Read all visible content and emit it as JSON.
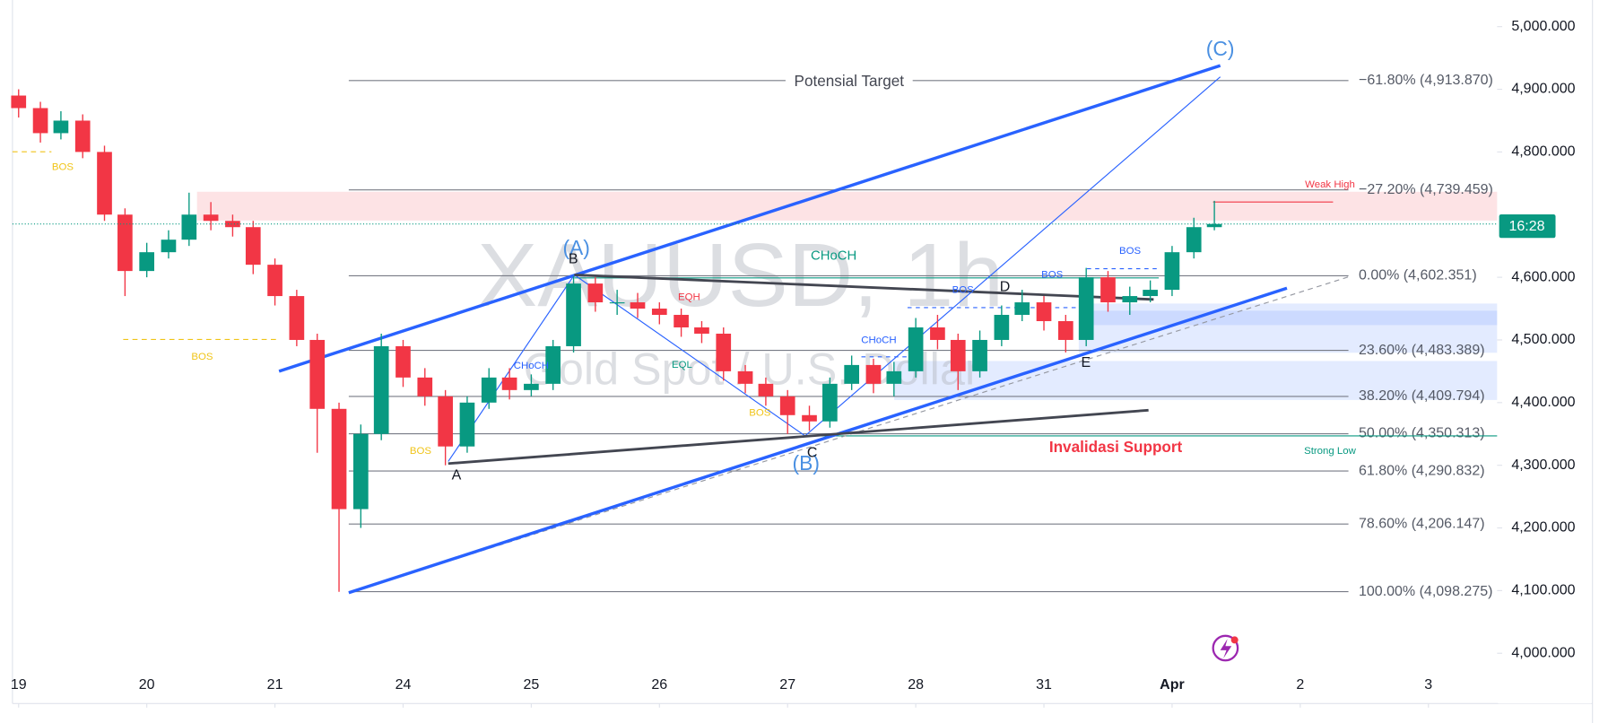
{
  "chart_data": {
    "type": "candlestick",
    "title": "XAUUSD, 1h",
    "subtitle": "Gold Spot / U.S. Dollar",
    "countdown": "16:28",
    "up_color": "#089981",
    "down_color": "#f23645",
    "x": [
      0,
      0.17,
      0.33,
      0.5,
      0.67,
      0.83,
      1,
      1.17,
      1.33,
      1.5,
      1.67,
      1.83,
      2,
      2.17,
      2.33,
      2.5,
      2.67,
      2.83,
      3,
      3.17,
      3.33,
      3.5,
      3.67,
      3.83,
      4,
      4.17,
      4.33,
      4.5,
      4.67,
      4.83,
      5,
      5.17,
      5.33,
      5.5,
      5.67,
      5.83,
      6,
      6.17,
      6.33,
      6.5,
      6.67,
      6.83,
      7,
      7.17,
      7.33,
      7.5,
      7.67,
      7.83,
      8,
      8.17,
      8.33,
      8.5,
      8.67,
      8.83,
      9,
      9.17,
      9.33
    ],
    "open": [
      4890,
      4870,
      4830,
      4850,
      4800,
      4700,
      4610,
      4640,
      4660,
      4700,
      4690,
      4680,
      4620,
      4570,
      4500,
      4390,
      4230,
      4350,
      4490,
      4440,
      4410,
      4330,
      4400,
      4440,
      4420,
      4430,
      4490,
      4590,
      4560,
      4560,
      4550,
      4540,
      4520,
      4510,
      4450,
      4430,
      4410,
      4380,
      4370,
      4430,
      4460,
      4430,
      4450,
      4520,
      4500,
      4450,
      4500,
      4540,
      4560,
      4530,
      4500,
      4600,
      4560,
      4570,
      4580,
      4640,
      4680
    ],
    "high": [
      4900,
      4880,
      4865,
      4860,
      4810,
      4710,
      4655,
      4675,
      4735,
      4720,
      4700,
      4690,
      4630,
      4580,
      4510,
      4400,
      4365,
      4510,
      4500,
      4455,
      4420,
      4410,
      4455,
      4455,
      4445,
      4500,
      4602,
      4600,
      4580,
      4575,
      4560,
      4550,
      4530,
      4520,
      4460,
      4440,
      4420,
      4395,
      4440,
      4475,
      4470,
      4465,
      4535,
      4540,
      4510,
      4515,
      4555,
      4580,
      4570,
      4540,
      4615,
      4610,
      4585,
      4595,
      4650,
      4695,
      4722
    ],
    "low": [
      4855,
      4815,
      4820,
      4790,
      4690,
      4570,
      4600,
      4630,
      4650,
      4675,
      4665,
      4605,
      4555,
      4490,
      4320,
      4098,
      4200,
      4340,
      4425,
      4395,
      4300,
      4320,
      4390,
      4405,
      4410,
      4420,
      4480,
      4545,
      4540,
      4535,
      4525,
      4505,
      4495,
      4435,
      4415,
      4395,
      4350,
      4355,
      4360,
      4420,
      4415,
      4410,
      4440,
      4485,
      4420,
      4440,
      4490,
      4530,
      4515,
      4480,
      4490,
      4545,
      4540,
      4560,
      4570,
      4630,
      4675
    ],
    "close": [
      4870,
      4830,
      4850,
      4800,
      4700,
      4610,
      4640,
      4660,
      4700,
      4690,
      4680,
      4620,
      4570,
      4500,
      4390,
      4230,
      4350,
      4490,
      4440,
      4410,
      4330,
      4400,
      4440,
      4420,
      4430,
      4490,
      4590,
      4560,
      4560,
      4550,
      4540,
      4520,
      4510,
      4450,
      4430,
      4410,
      4380,
      4370,
      4430,
      4460,
      4430,
      4450,
      4520,
      4500,
      4450,
      4500,
      4540,
      4560,
      4530,
      4500,
      4600,
      4560,
      4570,
      4580,
      4640,
      4680,
      4685
    ],
    "xlim": [
      -0.048,
      11.536
    ],
    "xticks": [
      {
        "value": 0,
        "label": "19"
      },
      {
        "value": 1,
        "label": "20"
      },
      {
        "value": 2,
        "label": "21"
      },
      {
        "value": 3,
        "label": "24"
      },
      {
        "value": 4,
        "label": "25"
      },
      {
        "value": 5,
        "label": "26"
      },
      {
        "value": 6,
        "label": "27"
      },
      {
        "value": 7,
        "label": "28"
      },
      {
        "value": 8,
        "label": "31"
      },
      {
        "value": 9,
        "label": "Apr"
      },
      {
        "value": 10,
        "label": "2"
      },
      {
        "value": 11,
        "label": "3"
      }
    ],
    "ylim": [
      3970.5,
      5042.5
    ],
    "yticks": [
      {
        "value": 4000,
        "label": "4,000.000"
      },
      {
        "value": 4100,
        "label": "4,100.000"
      },
      {
        "value": 4200,
        "label": "4,200.000"
      },
      {
        "value": 4300,
        "label": "4,300.000"
      },
      {
        "value": 4400,
        "label": "4,400.000"
      },
      {
        "value": 4500,
        "label": "4,500.000"
      },
      {
        "value": 4600,
        "label": "4,600.000"
      },
      {
        "value": 4800,
        "label": "4,800.000"
      },
      {
        "value": 4900,
        "label": "4,900.000"
      },
      {
        "value": 5000,
        "label": "5,000.000"
      }
    ],
    "fib_levels": [
      {
        "value": 4913.87,
        "label": "−61.80% (4,913.870)"
      },
      {
        "value": 4739.459,
        "label": "−27.20% (4,739.459)"
      },
      {
        "value": 4602.351,
        "label": "0.00% (4,602.351)"
      },
      {
        "value": 4483.389,
        "label": "23.60% (4,483.389)"
      },
      {
        "value": 4409.794,
        "label": "38.20% (4,409.794)"
      },
      {
        "value": 4350.313,
        "label": "50.00% (4,350.313)"
      },
      {
        "value": 4290.832,
        "label": "61.80% (4,290.832)"
      },
      {
        "value": 4206.147,
        "label": "78.60% (4,206.147)"
      },
      {
        "value": 4098.275,
        "label": "100.00% (4,098.275)"
      }
    ],
    "annotations": [
      "Potensial Target",
      "Invalidasi Support",
      "Weak High",
      "Strong Low",
      "(A)",
      "(B)",
      "(C)",
      "A",
      "B",
      "C",
      "D",
      "E",
      "CHoCH",
      "CHoCH",
      "CHoCH",
      "BOS",
      "BOS",
      "BOS",
      "BOS",
      "BOS",
      "BOS",
      "BOS",
      "EQH",
      "EQL"
    ]
  }
}
